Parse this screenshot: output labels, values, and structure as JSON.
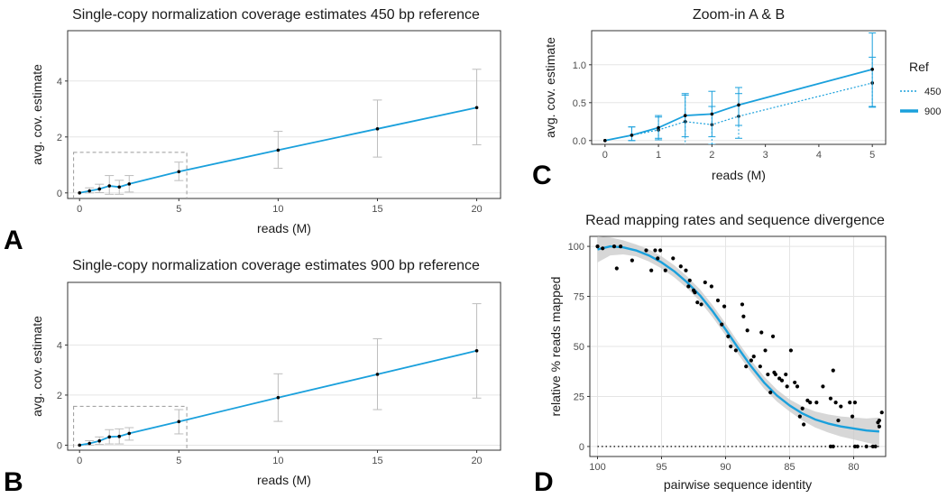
{
  "colors": {
    "line": "#1aa0dc",
    "point": "#000000",
    "error": "#bdbdbd",
    "grid": "#e5e5e5",
    "band": "#c9c9c9",
    "inset": "#9a9a9a"
  },
  "panel_labels": [
    "A",
    "B",
    "C",
    "D"
  ],
  "chart_data": [
    {
      "id": "A",
      "type": "line",
      "title": "Single-copy normalization coverage estimates 450 bp reference",
      "xlabel": "reads (M)",
      "ylabel": "avg. cov. estimate",
      "xlim": [
        -0.6,
        21.2
      ],
      "ylim": [
        -0.2,
        5.8
      ],
      "xticks": [
        0,
        5,
        10,
        15,
        20
      ],
      "yticks": [
        0,
        2,
        4
      ],
      "grid": "horizontal",
      "series": [
        {
          "x": [
            0,
            0.5,
            1,
            1.5,
            2,
            2.5,
            5,
            10,
            15,
            20
          ],
          "y": [
            0,
            0.07,
            0.14,
            0.25,
            0.21,
            0.32,
            0.76,
            1.53,
            2.29,
            3.05
          ],
          "ymin": [
            0,
            0.0,
            0.01,
            -0.05,
            -0.05,
            0.03,
            0.44,
            0.88,
            1.28,
            1.72
          ],
          "ymax": [
            0,
            0.18,
            0.31,
            0.62,
            0.45,
            0.62,
            1.1,
            2.2,
            3.32,
            4.42
          ]
        }
      ],
      "zoom_box": {
        "x": [
          -0.3,
          5.4
        ],
        "y": [
          -0.3,
          1.45
        ]
      }
    },
    {
      "id": "B",
      "type": "line",
      "title": "Single-copy normalization coverage estimates 900 bp reference",
      "xlabel": "reads (M)",
      "ylabel": "avg. cov. estimate",
      "xlim": [
        -0.6,
        21.2
      ],
      "ylim": [
        -0.2,
        6.5
      ],
      "xticks": [
        0,
        5,
        10,
        15,
        20
      ],
      "yticks": [
        0,
        2,
        4
      ],
      "grid": "horizontal",
      "series": [
        {
          "x": [
            0,
            0.5,
            1,
            1.5,
            2,
            2.5,
            5,
            10,
            15,
            20
          ],
          "y": [
            0,
            0.07,
            0.17,
            0.33,
            0.35,
            0.47,
            0.94,
            1.9,
            2.83,
            3.77
          ],
          "ymin": [
            0,
            0.0,
            0.03,
            0.05,
            0.05,
            0.2,
            0.45,
            0.95,
            1.42,
            1.88
          ],
          "ymax": [
            0,
            0.18,
            0.33,
            0.62,
            0.65,
            0.7,
            1.42,
            2.85,
            4.25,
            5.65
          ]
        }
      ],
      "zoom_box": {
        "x": [
          -0.3,
          5.4
        ],
        "y": [
          -0.3,
          1.55
        ]
      }
    },
    {
      "id": "C",
      "type": "line",
      "title": "Zoom-in A & B",
      "xlabel": "reads (M)",
      "ylabel": "avg. cov. estimate",
      "xlim": [
        -0.25,
        5.25
      ],
      "ylim": [
        -0.05,
        1.45
      ],
      "xticks": [
        0,
        1,
        2,
        3,
        4,
        5
      ],
      "yticks": [
        0.0,
        0.5,
        1.0
      ],
      "ytick_labels": [
        "0.0",
        "0.5",
        "1.0"
      ],
      "grid": "horizontal",
      "legend": {
        "title": "Ref",
        "position": "right"
      },
      "series": [
        {
          "name": "450",
          "style": "dotted",
          "x": [
            0,
            0.5,
            1,
            1.5,
            2,
            2.5,
            5
          ],
          "y": [
            0,
            0.07,
            0.14,
            0.25,
            0.21,
            0.32,
            0.76
          ],
          "ymin": [
            0,
            0.0,
            0.01,
            -0.07,
            -0.05,
            0.03,
            0.44
          ],
          "ymax": [
            0,
            0.18,
            0.31,
            0.6,
            0.45,
            0.62,
            1.1
          ]
        },
        {
          "name": "900",
          "style": "solid",
          "x": [
            0,
            0.5,
            1,
            1.5,
            2,
            2.5,
            5
          ],
          "y": [
            0,
            0.07,
            0.17,
            0.33,
            0.35,
            0.47,
            0.94
          ],
          "ymin": [
            0,
            0.0,
            0.03,
            0.05,
            0.05,
            0.2,
            0.45
          ],
          "ymax": [
            0,
            0.18,
            0.33,
            0.62,
            0.65,
            0.7,
            1.42
          ]
        }
      ]
    },
    {
      "id": "D",
      "type": "scatter",
      "title": "Read mapping rates and sequence divergence",
      "xlabel": "pairwise sequence identity",
      "ylabel": "relative % reads mapped",
      "xlim": [
        100.6,
        77.5
      ],
      "ylim": [
        -5,
        105
      ],
      "x_reversed": true,
      "xticks": [
        100,
        95,
        90,
        85,
        80
      ],
      "yticks": [
        0,
        25,
        50,
        75,
        100
      ],
      "grid": "both",
      "reference_line": {
        "y": 0,
        "style": "dotted"
      },
      "points": {
        "x": [
          100,
          99.6,
          98.7,
          98.5,
          98.2,
          97.3,
          96.2,
          95.8,
          95.5,
          95.1,
          95.3,
          94.7,
          94.1,
          93.5,
          93.1,
          92.8,
          92.2,
          92.9,
          92.5,
          91.9,
          91.6,
          91.1,
          90.6,
          90.3,
          90.1,
          89.8,
          89.6,
          89.2,
          88.7,
          88.6,
          88.4,
          88.3,
          88.0,
          87.8,
          87.3,
          87.2,
          86.9,
          86.7,
          86.5,
          86.3,
          86.1,
          85.8,
          85.6,
          85.3,
          85.2,
          84.9,
          84.6,
          84.2,
          84.0,
          83.9,
          83.6,
          83.4,
          82.9,
          82.4,
          81.8,
          81.6,
          81.4,
          81.2,
          81.0,
          80.3,
          80.1,
          79.9,
          79.0,
          78.5,
          78.3,
          78.1
        ],
        "y": [
          100,
          99,
          100,
          89,
          100,
          93,
          98,
          88,
          98,
          98,
          94,
          88,
          94,
          90,
          88,
          83,
          72,
          80,
          78,
          71,
          82,
          80,
          73,
          61,
          70,
          55,
          50,
          48,
          71,
          65,
          40,
          58,
          43,
          45,
          40,
          57,
          48,
          36,
          27,
          55,
          36,
          34,
          33,
          36,
          30,
          48,
          32,
          15,
          19,
          11,
          23,
          22,
          22,
          30,
          24,
          38,
          22,
          13,
          20,
          22,
          15,
          22,
          0,
          0,
          0,
          12
        ],
        "extra": [
          [
            81.8,
            0
          ],
          [
            81.6,
            0
          ],
          [
            79.9,
            0
          ],
          [
            79.7,
            0
          ],
          [
            78.0,
            13
          ],
          [
            78.0,
            10
          ],
          [
            77.8,
            17
          ],
          [
            92.4,
            77
          ],
          [
            86.2,
            37
          ],
          [
            84.4,
            30
          ]
        ]
      },
      "smooth": {
        "x": [
          100,
          99,
          98,
          97,
          96,
          95,
          94,
          93,
          92,
          91,
          90,
          89,
          88,
          87,
          86,
          85,
          84,
          83,
          82,
          81,
          80,
          79,
          78
        ],
        "y": [
          98.5,
          100,
          99.5,
          98,
          95.5,
          92,
          87.5,
          82,
          75.5,
          67.5,
          58.5,
          49,
          40,
          32,
          25.5,
          20.5,
          16.5,
          13.5,
          11.5,
          10,
          9,
          8,
          7.5
        ],
        "lo": [
          92,
          95.5,
          96,
          95,
          92.5,
          89,
          84.5,
          79,
          72.5,
          64.5,
          55.5,
          46,
          37,
          29,
          22.5,
          17.5,
          13,
          9.5,
          7,
          5,
          3.5,
          2,
          0.5
        ],
        "hi": [
          105,
          104.5,
          103,
          101,
          98.5,
          95,
          90.5,
          85,
          78.5,
          70.5,
          61.5,
          52,
          43,
          35,
          28.5,
          23.5,
          20,
          17.5,
          16,
          15,
          14.5,
          14,
          14.5
        ]
      }
    }
  ]
}
